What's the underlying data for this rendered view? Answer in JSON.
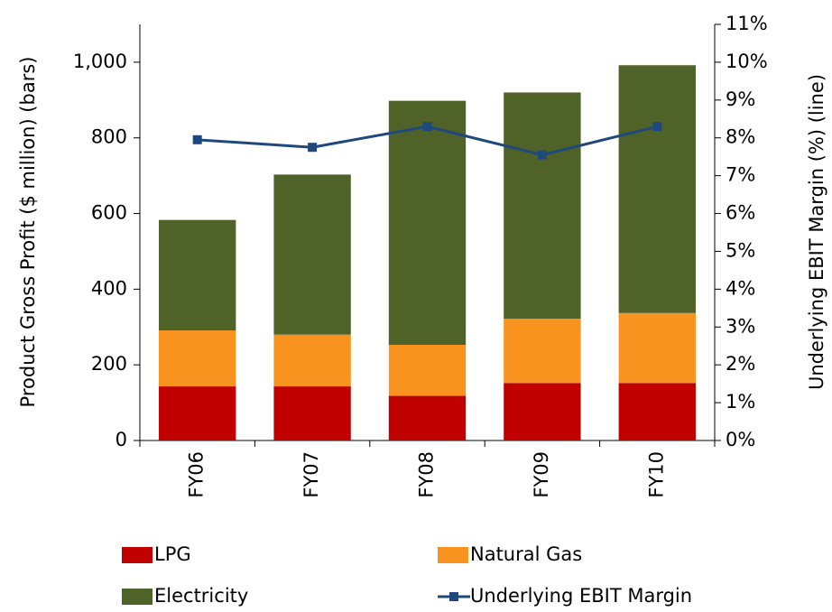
{
  "chart_data": {
    "type": "bar",
    "stacked": true,
    "categories": [
      "FY06",
      "FY07",
      "FY08",
      "FY09",
      "FY10"
    ],
    "series": [
      {
        "name": "LPG",
        "color": "#c00000",
        "values": [
          143,
          143,
          118,
          152,
          152
        ]
      },
      {
        "name": "Natural Gas",
        "color": "#f7931e",
        "values": [
          148,
          137,
          135,
          170,
          185
        ]
      },
      {
        "name": "Electricity",
        "color": "#4f6228",
        "values": [
          292,
          423,
          645,
          598,
          655
        ]
      },
      {
        "name": "Underlying EBIT Margin",
        "type": "line",
        "axis": "y2",
        "color": "#1f497d",
        "values": [
          7.95,
          7.75,
          8.3,
          7.55,
          8.3
        ]
      }
    ],
    "ylabel": "Product Gross Profit ($ million) (bars)",
    "y2label": "Underlying EBIT Margin (%) (line)",
    "ylim": [
      0,
      1100
    ],
    "yticks": [
      0,
      200,
      400,
      600,
      800,
      {
        "value": 1000,
        "label": "1,000"
      }
    ],
    "y2lim": [
      0,
      11
    ],
    "y2ticks": [
      {
        "value": 0,
        "label": "0%"
      },
      {
        "value": 1,
        "label": "1%"
      },
      {
        "value": 2,
        "label": "2%"
      },
      {
        "value": 3,
        "label": "3%"
      },
      {
        "value": 4,
        "label": "4%"
      },
      {
        "value": 5,
        "label": "5%"
      },
      {
        "value": 6,
        "label": "6%"
      },
      {
        "value": 7,
        "label": "7%"
      },
      {
        "value": 8,
        "label": "8%"
      },
      {
        "value": 9,
        "label": "9%"
      },
      {
        "value": 10,
        "label": "10%"
      },
      {
        "value": 11,
        "label": "11%"
      }
    ],
    "grid": false
  }
}
